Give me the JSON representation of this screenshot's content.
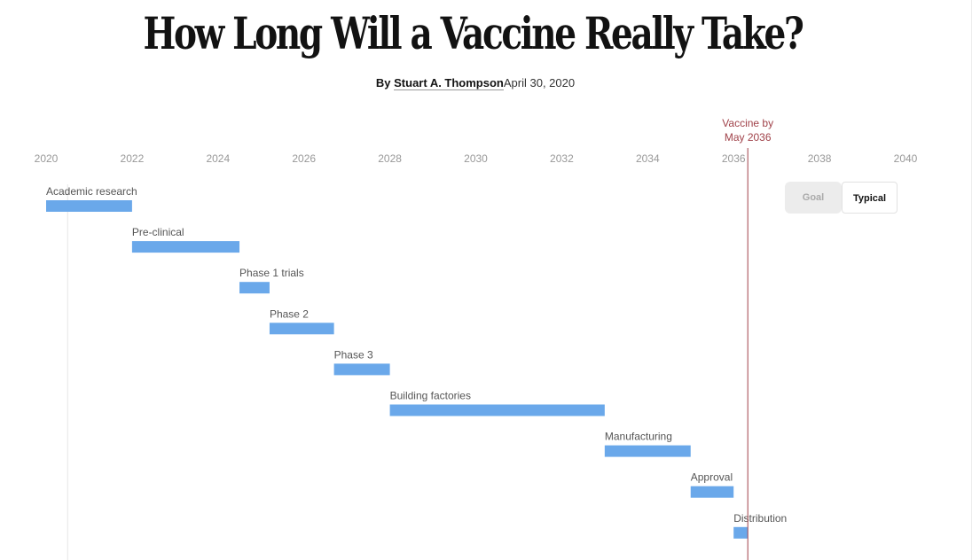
{
  "article": {
    "headline": "How Long Will a Vaccine Really Take?",
    "byline_prefix": "By ",
    "author": "Stuart A. Thompson",
    "date": "April 30, 2020"
  },
  "toggle": {
    "goal_label": "Goal",
    "typical_label": "Typical",
    "selected": "Typical"
  },
  "colors": {
    "bar": "#6aa8ea",
    "vaccine_line": "#a0424a",
    "axis_text": "#999999",
    "label_text": "#555555"
  },
  "chart_data": {
    "type": "bar",
    "orientation": "horizontal-timeline",
    "title": "",
    "xlabel": "",
    "ylabel": "",
    "xlim": [
      2020,
      2040
    ],
    "x_ticks": [
      2020,
      2022,
      2024,
      2026,
      2028,
      2030,
      2032,
      2034,
      2036,
      2038,
      2040
    ],
    "tasks": [
      {
        "label": "Academic research",
        "start": 2020.0,
        "end": 2022.0
      },
      {
        "label": "Pre-clinical",
        "start": 2022.0,
        "end": 2024.5
      },
      {
        "label": "Phase 1 trials",
        "start": 2024.5,
        "end": 2025.2
      },
      {
        "label": "Phase 2",
        "start": 2025.2,
        "end": 2026.7
      },
      {
        "label": "Phase 3",
        "start": 2026.7,
        "end": 2028.0
      },
      {
        "label": "Building factories",
        "start": 2028.0,
        "end": 2033.0
      },
      {
        "label": "Manufacturing",
        "start": 2033.0,
        "end": 2035.0
      },
      {
        "label": "Approval",
        "start": 2035.0,
        "end": 2036.0
      },
      {
        "label": "Distribution",
        "start": 2036.0,
        "end": 2036.33
      }
    ],
    "markers": [
      {
        "label_line1": "Vaccine by",
        "label_line2": "May 2036",
        "x": 2036.33
      },
      {
        "x": 2020.5
      }
    ],
    "grid": false
  }
}
